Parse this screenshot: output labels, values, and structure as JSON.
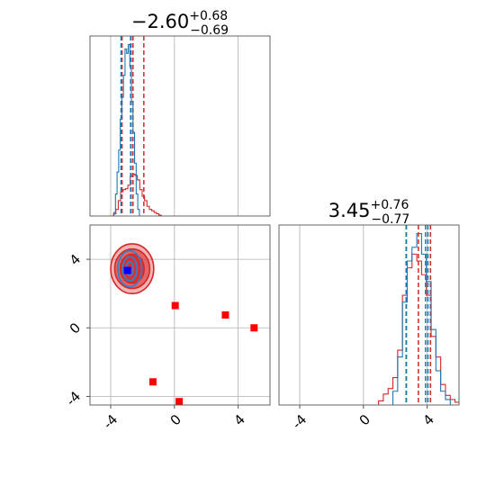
{
  "chart_data": [
    {
      "type": "histogram",
      "panel": "top-left",
      "title": {
        "main": "−2.60",
        "sup": "+0.68",
        "sub": "−0.69"
      },
      "xlim": [
        -5.3,
        6.0
      ],
      "grid": true,
      "xticks": [
        -4,
        0,
        4
      ],
      "series": [
        {
          "color": "#d62728",
          "quantiles": [
            -3.29,
            -2.6,
            -1.92
          ],
          "bins": [
            [
              -3.75,
              0.05
            ],
            [
              -3.6,
              0.15
            ],
            [
              -3.45,
              0.35
            ],
            [
              -3.3,
              0.55
            ],
            [
              -3.15,
              0.6
            ],
            [
              -3.0,
              0.62
            ],
            [
              -2.85,
              0.7
            ],
            [
              -2.7,
              0.9
            ],
            [
              -2.55,
              0.95
            ],
            [
              -2.4,
              0.92
            ],
            [
              -2.25,
              0.82
            ],
            [
              -2.1,
              0.6
            ],
            [
              -1.95,
              0.45
            ],
            [
              -1.8,
              0.35
            ],
            [
              -1.65,
              0.22
            ],
            [
              -1.5,
              0.15
            ],
            [
              -1.35,
              0.12
            ],
            [
              -1.2,
              0.08
            ],
            [
              -1.05,
              0.05
            ],
            [
              -0.9,
              0.02
            ]
          ]
        },
        {
          "color": "#1f77b4",
          "quantiles": [
            -3.35,
            -2.75,
            -2.72
          ],
          "bins": [
            [
              -3.75,
              0.08
            ],
            [
              -3.65,
              0.5
            ],
            [
              -3.55,
              1.0
            ],
            [
              -3.45,
              1.5
            ],
            [
              -3.35,
              2.2
            ],
            [
              -3.25,
              2.7
            ],
            [
              -3.15,
              3.2
            ],
            [
              -3.05,
              3.8
            ],
            [
              -2.95,
              3.7
            ],
            [
              -2.85,
              3.9
            ],
            [
              -2.75,
              3.4
            ],
            [
              -2.65,
              2.6
            ],
            [
              -2.55,
              1.9
            ],
            [
              -2.45,
              1.2
            ],
            [
              -2.35,
              0.5
            ],
            [
              -2.25,
              0.15
            ]
          ]
        }
      ]
    },
    {
      "type": "histogram",
      "panel": "bottom-right",
      "title": {
        "main": "3.45",
        "sup": "+0.76",
        "sub": "−0.77"
      },
      "xlim": [
        -5.3,
        6.0
      ],
      "grid": true,
      "xticks": [
        -4,
        0,
        4
      ],
      "series": [
        {
          "color": "#d62728",
          "quantiles": [
            2.68,
            3.45,
            4.21
          ],
          "bins": [
            [
              1.1,
              0.03
            ],
            [
              1.4,
              0.08
            ],
            [
              1.7,
              0.12
            ],
            [
              2.0,
              0.2
            ],
            [
              2.3,
              0.4
            ],
            [
              2.6,
              0.8
            ],
            [
              2.9,
              1.0
            ],
            [
              3.2,
              1.1
            ],
            [
              3.5,
              1.05
            ],
            [
              3.8,
              0.95
            ],
            [
              4.1,
              0.8
            ],
            [
              4.4,
              0.5
            ],
            [
              4.7,
              0.35
            ],
            [
              5.0,
              0.15
            ],
            [
              5.3,
              0.07
            ],
            [
              5.6,
              0.04
            ],
            [
              5.9,
              0.02
            ]
          ]
        },
        {
          "color": "#1f77b4",
          "quantiles": [
            2.7,
            3.9,
            4.05
          ],
          "bins": [
            [
              2.0,
              0.1
            ],
            [
              2.3,
              0.35
            ],
            [
              2.6,
              0.75
            ],
            [
              2.9,
              1.05
            ],
            [
              3.2,
              1.15
            ],
            [
              3.5,
              1.25
            ],
            [
              3.8,
              1.1
            ],
            [
              4.1,
              0.9
            ],
            [
              4.4,
              0.55
            ],
            [
              4.7,
              0.25
            ],
            [
              5.0,
              0.1
            ],
            [
              5.3,
              0.04
            ]
          ]
        }
      ]
    },
    {
      "type": "scatter",
      "panel": "bottom-left",
      "xlim": [
        -5.3,
        6.0
      ],
      "ylim": [
        -4.5,
        6.0
      ],
      "grid": true,
      "xticks": [
        -4,
        0,
        4
      ],
      "yticks": [
        -4,
        0,
        4
      ],
      "contours": {
        "color": "#d62728",
        "center": [
          -2.65,
          3.45
        ],
        "levels": [
          {
            "rx": 1.35,
            "ry": 1.45
          },
          {
            "rx": 1.1,
            "ry": 1.15
          },
          {
            "rx": 0.75,
            "ry": 0.85
          }
        ],
        "blue_center": [
          -2.8,
          3.45
        ],
        "blue_levels": [
          {
            "rx": 0.75,
            "ry": 1.05
          },
          {
            "rx": 0.45,
            "ry": 0.7
          },
          {
            "rx": 0.22,
            "ry": 0.4
          }
        ]
      },
      "blue_marker": [
        -2.95,
        3.35
      ],
      "red_markers": [
        [
          0.05,
          1.3
        ],
        [
          3.2,
          0.75
        ],
        [
          5.0,
          0.0
        ],
        [
          -1.35,
          -3.15
        ],
        [
          0.3,
          -4.3
        ]
      ]
    }
  ]
}
